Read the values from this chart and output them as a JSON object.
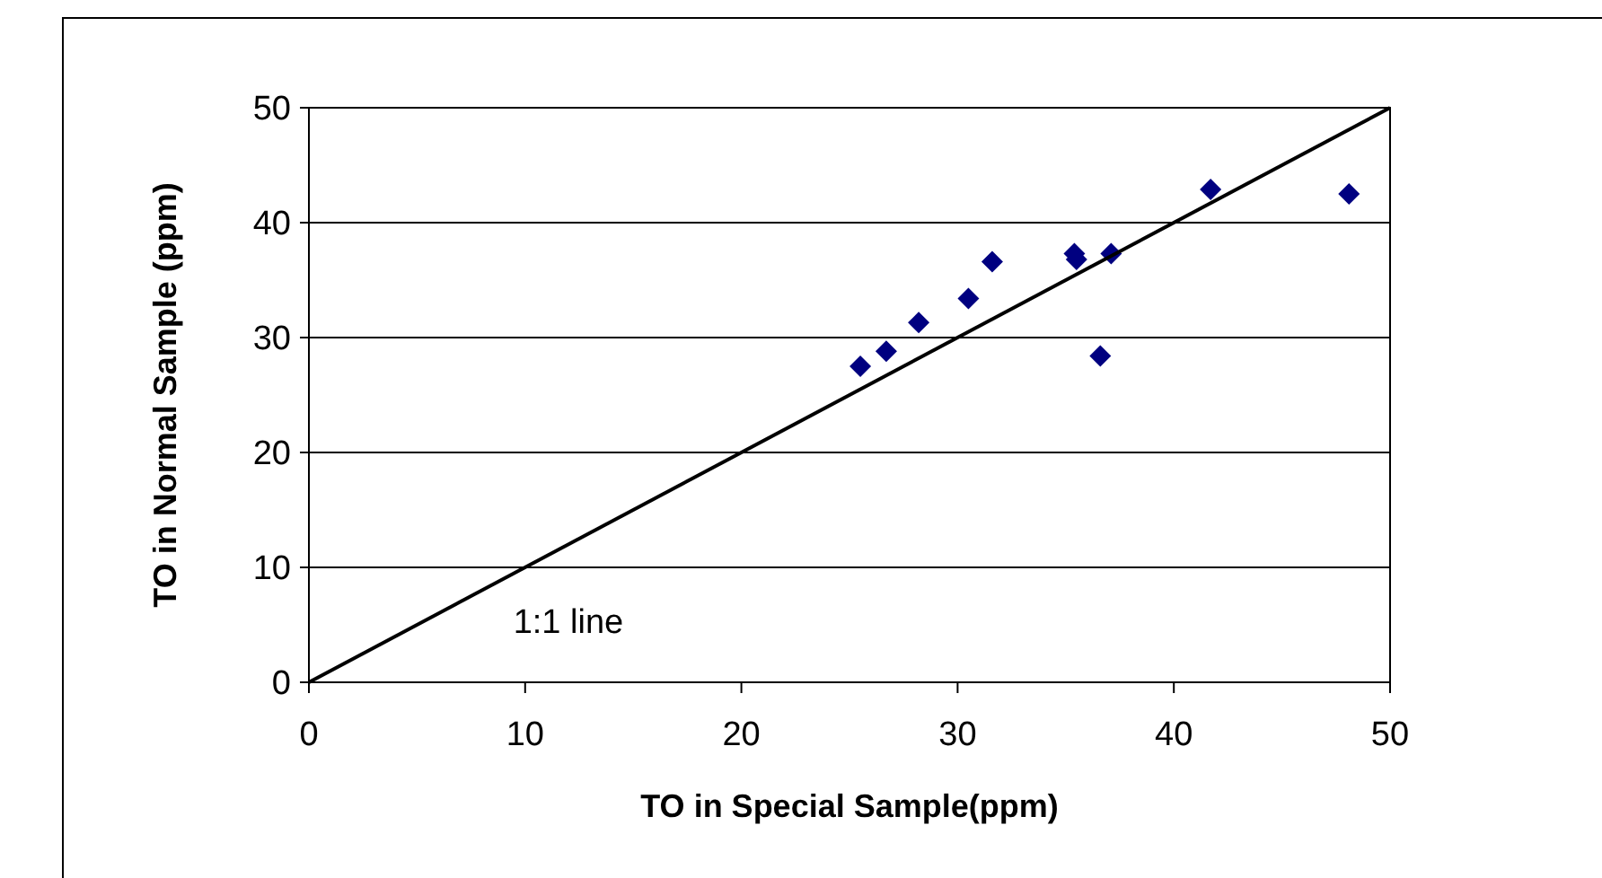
{
  "chart_data": {
    "type": "scatter",
    "xlabel": "TO in Special Sample(ppm)",
    "ylabel": "TO in Normal Sample (ppm)",
    "xlim": [
      0,
      50
    ],
    "ylim": [
      0,
      50
    ],
    "xticks": [
      0,
      10,
      20,
      30,
      40,
      50
    ],
    "yticks": [
      0,
      10,
      20,
      30,
      40,
      50
    ],
    "grid": "y",
    "marker": "diamond",
    "series": [
      {
        "color": "#000080",
        "x": [
          25.5,
          26.7,
          28.2,
          30.5,
          31.6,
          35.4,
          35.5,
          37.1,
          36.6,
          41.7,
          48.1
        ],
        "values": [
          27.5,
          28.8,
          31.3,
          33.4,
          36.6,
          37.3,
          36.8,
          37.3,
          28.4,
          42.9,
          42.5
        ]
      },
      {
        "type": "line",
        "color": "#000000",
        "marker": "none",
        "x": [
          0,
          50
        ],
        "values": [
          0,
          50
        ]
      }
    ],
    "annotations": [
      "1:1 line"
    ]
  }
}
